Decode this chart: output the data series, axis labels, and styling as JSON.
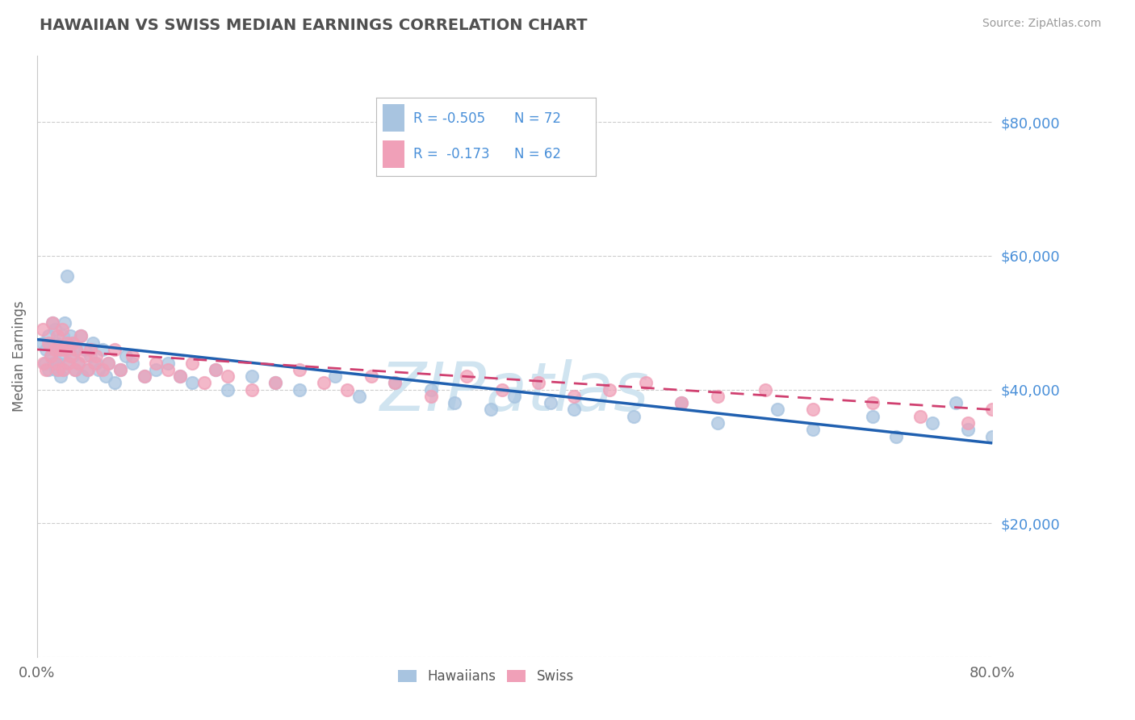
{
  "title": "HAWAIIAN VS SWISS MEDIAN EARNINGS CORRELATION CHART",
  "source": "Source: ZipAtlas.com",
  "ylabel": "Median Earnings",
  "xlim": [
    0.0,
    0.8
  ],
  "ylim": [
    0,
    90000
  ],
  "yticks": [
    0,
    20000,
    40000,
    60000,
    80000
  ],
  "ytick_labels": [
    "",
    "$20,000",
    "$40,000",
    "$60,000",
    "$80,000"
  ],
  "xticks": [
    0.0,
    0.1,
    0.2,
    0.3,
    0.4,
    0.5,
    0.6,
    0.7,
    0.8
  ],
  "hawaiians_R": -0.505,
  "hawaiians_N": 72,
  "swiss_R": -0.173,
  "swiss_N": 62,
  "hawaiians_color": "#a8c4e0",
  "hawaiians_line_color": "#2060b0",
  "swiss_color": "#f0a0b8",
  "swiss_line_color": "#d04070",
  "title_color": "#505050",
  "axis_label_color": "#4a90d9",
  "grid_color": "#c8c8c8",
  "watermark_color": "#d0e4f0",
  "hawaiians_x": [
    0.005,
    0.007,
    0.008,
    0.01,
    0.01,
    0.012,
    0.013,
    0.014,
    0.015,
    0.016,
    0.016,
    0.018,
    0.018,
    0.02,
    0.02,
    0.022,
    0.022,
    0.023,
    0.025,
    0.025,
    0.027,
    0.028,
    0.03,
    0.03,
    0.032,
    0.033,
    0.035,
    0.037,
    0.038,
    0.04,
    0.042,
    0.045,
    0.047,
    0.05,
    0.052,
    0.055,
    0.058,
    0.06,
    0.065,
    0.07,
    0.075,
    0.08,
    0.09,
    0.1,
    0.11,
    0.12,
    0.13,
    0.15,
    0.16,
    0.18,
    0.2,
    0.22,
    0.25,
    0.27,
    0.3,
    0.33,
    0.35,
    0.38,
    0.4,
    0.43,
    0.45,
    0.5,
    0.54,
    0.57,
    0.62,
    0.65,
    0.7,
    0.72,
    0.75,
    0.77,
    0.78,
    0.8
  ],
  "hawaiians_y": [
    47000,
    44000,
    46000,
    43000,
    48000,
    45000,
    50000,
    44000,
    49000,
    43000,
    47000,
    44000,
    46000,
    42000,
    45000,
    48000,
    43000,
    50000,
    57000,
    44000,
    46000,
    48000,
    45000,
    47000,
    43000,
    46000,
    44000,
    48000,
    42000,
    46000,
    43000,
    45000,
    47000,
    44000,
    43000,
    46000,
    42000,
    44000,
    41000,
    43000,
    45000,
    44000,
    42000,
    43000,
    44000,
    42000,
    41000,
    43000,
    40000,
    42000,
    41000,
    40000,
    42000,
    39000,
    41000,
    40000,
    38000,
    37000,
    39000,
    38000,
    37000,
    36000,
    38000,
    35000,
    37000,
    34000,
    36000,
    33000,
    35000,
    38000,
    34000,
    33000
  ],
  "swiss_x": [
    0.005,
    0.006,
    0.008,
    0.01,
    0.012,
    0.013,
    0.015,
    0.016,
    0.017,
    0.018,
    0.02,
    0.021,
    0.022,
    0.023,
    0.025,
    0.027,
    0.028,
    0.03,
    0.032,
    0.033,
    0.035,
    0.037,
    0.04,
    0.043,
    0.045,
    0.048,
    0.05,
    0.055,
    0.06,
    0.065,
    0.07,
    0.08,
    0.09,
    0.1,
    0.11,
    0.12,
    0.13,
    0.14,
    0.15,
    0.16,
    0.18,
    0.2,
    0.22,
    0.24,
    0.26,
    0.28,
    0.3,
    0.33,
    0.36,
    0.39,
    0.42,
    0.45,
    0.48,
    0.51,
    0.54,
    0.57,
    0.61,
    0.65,
    0.7,
    0.74,
    0.78,
    0.8
  ],
  "swiss_y": [
    49000,
    44000,
    43000,
    47000,
    45000,
    50000,
    46000,
    44000,
    48000,
    43000,
    46000,
    49000,
    43000,
    46000,
    47000,
    44000,
    45000,
    47000,
    43000,
    46000,
    44000,
    48000,
    45000,
    43000,
    46000,
    44000,
    45000,
    43000,
    44000,
    46000,
    43000,
    45000,
    42000,
    44000,
    43000,
    42000,
    44000,
    41000,
    43000,
    42000,
    40000,
    41000,
    43000,
    41000,
    40000,
    42000,
    41000,
    39000,
    42000,
    40000,
    41000,
    39000,
    40000,
    41000,
    38000,
    39000,
    40000,
    37000,
    38000,
    36000,
    35000,
    37000
  ],
  "haw_line_x": [
    0.0,
    0.8
  ],
  "haw_line_y": [
    47500,
    32000
  ],
  "swiss_line_x": [
    0.0,
    0.8
  ],
  "swiss_line_y": [
    46000,
    37000
  ]
}
